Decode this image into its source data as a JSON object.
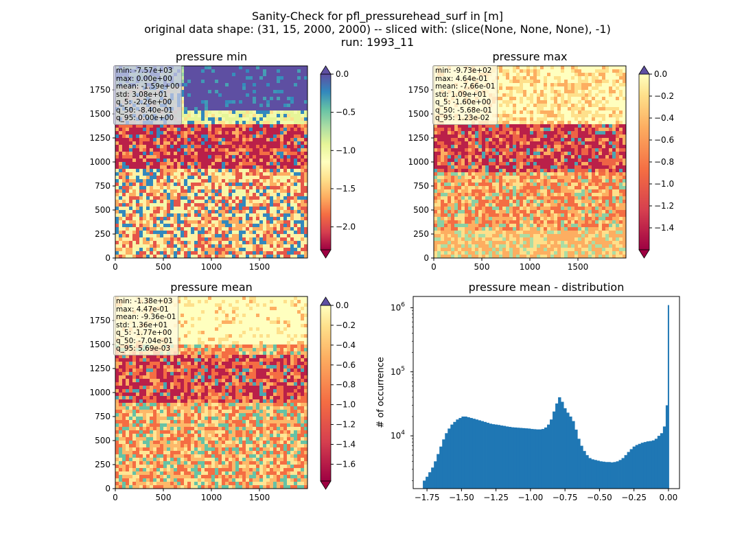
{
  "figure": {
    "suptitle_lines": [
      "Sanity-Check for pfl_pressurehead_surf in [m]",
      "original data shape: (31, 15, 2000, 2000) -- sliced with: (slice(None, None, None), -1)",
      "run: 1993_11"
    ]
  },
  "maps": [
    {
      "title": "pressure min",
      "stats": [
        "min: -7.57e+03",
        "max: 0.00e+00",
        "mean: -1.59e+00",
        "std: 3.08e+01",
        "q_5: -2.26e+00",
        "q_50: -8.40e-01",
        "q_95: 0.00e+00"
      ],
      "x_ticks": [
        "0",
        "500",
        "1000",
        "1500"
      ],
      "y_ticks": [
        "0",
        "250",
        "500",
        "750",
        "1000",
        "1250",
        "1500",
        "1750"
      ],
      "colorbar": {
        "vmin": -2.3,
        "vmax": 0.0,
        "ticks": [
          "0.0",
          "−0.5",
          "−1.0",
          "−1.5",
          "−2.0"
        ],
        "tick_values": [
          0.0,
          -0.5,
          -1.0,
          -1.5,
          -2.0
        ],
        "extend": "both",
        "cmap": "Spectral"
      }
    },
    {
      "title": "pressure max",
      "stats": [
        "min: -9.73e+02",
        "max: 4.64e-01",
        "mean: -7.66e-01",
        "std: 1.09e+01",
        "q_5: -1.60e+00",
        "q_50: -5.68e-01",
        "q_95: 1.23e-02"
      ],
      "x_ticks": [
        "0",
        "500",
        "1000",
        "1500"
      ],
      "y_ticks": [
        "0",
        "250",
        "500",
        "750",
        "1000",
        "1250",
        "1500",
        "1750"
      ],
      "colorbar": {
        "vmin": -1.6,
        "vmax": 0.0,
        "ticks": [
          "0.0",
          "−0.2",
          "−0.4",
          "−0.6",
          "−0.8",
          "−1.0",
          "−1.2",
          "−1.4"
        ],
        "tick_values": [
          0.0,
          -0.2,
          -0.4,
          -0.6,
          -0.8,
          -1.0,
          -1.2,
          -1.4
        ],
        "extend": "both",
        "cmap": "Spectral"
      }
    },
    {
      "title": "pressure mean",
      "stats": [
        "min: -1.38e+03",
        "max: 4.47e-01",
        "mean: -9.36e-01",
        "std: 1.36e+01",
        "q_5: -1.77e+00",
        "q_50: -7.04e-01",
        "q_95: 5.69e-03"
      ],
      "x_ticks": [
        "0",
        "500",
        "1000",
        "1500"
      ],
      "y_ticks": [
        "0",
        "250",
        "500",
        "750",
        "1000",
        "1250",
        "1500",
        "1750"
      ],
      "colorbar": {
        "vmin": -1.77,
        "vmax": 0.0,
        "ticks": [
          "0.0",
          "−0.2",
          "−0.4",
          "−0.6",
          "−0.8",
          "−1.0",
          "−1.2",
          "−1.4",
          "−1.6"
        ],
        "tick_values": [
          0.0,
          -0.2,
          -0.4,
          -0.6,
          -0.8,
          -1.0,
          -1.2,
          -1.4,
          -1.6
        ],
        "extend": "both",
        "cmap": "Spectral"
      }
    }
  ],
  "histogram": {
    "title": "pressure mean - distribution",
    "ylabel": "# of occurrence",
    "x_ticks": [
      "−1.75",
      "−1.50",
      "−1.25",
      "−1.00",
      "−0.75",
      "−0.50",
      "−0.25",
      "0.00"
    ],
    "y_tick_base": "10",
    "y_tick_exponents": [
      "4",
      "5",
      "6"
    ]
  },
  "chart_data": [
    {
      "type": "heatmap",
      "title": "pressure min",
      "xlim": [
        0,
        2000
      ],
      "ylim": [
        0,
        2000
      ],
      "colorbar_range": [
        -2.3,
        0.0
      ],
      "stats": {
        "min": -7570,
        "max": 0.0,
        "mean": -1.59,
        "std": 30.8,
        "q_5": -2.26,
        "q_50": -0.84,
        "q_95": 0.0
      }
    },
    {
      "type": "heatmap",
      "title": "pressure max",
      "xlim": [
        0,
        2000
      ],
      "ylim": [
        0,
        2000
      ],
      "colorbar_range": [
        -1.6,
        0.0
      ],
      "stats": {
        "min": -973,
        "max": 0.464,
        "mean": -0.766,
        "std": 10.9,
        "q_5": -1.6,
        "q_50": -0.568,
        "q_95": 0.0123
      }
    },
    {
      "type": "heatmap",
      "title": "pressure mean",
      "xlim": [
        0,
        2000
      ],
      "ylim": [
        0,
        2000
      ],
      "colorbar_range": [
        -1.77,
        0.0
      ],
      "stats": {
        "min": -1380,
        "max": 0.447,
        "mean": -0.936,
        "std": 13.6,
        "q_5": -1.77,
        "q_50": -0.704,
        "q_95": 0.00569
      }
    },
    {
      "type": "bar",
      "title": "pressure mean - distribution",
      "ylabel": "# of occurrence",
      "y_scale": "log",
      "xlim": [
        -1.85,
        0.08
      ],
      "ylim": [
        1500,
        1500000
      ],
      "color": "#1f77b4",
      "x": [
        -1.77,
        -1.75,
        -1.73,
        -1.71,
        -1.69,
        -1.67,
        -1.65,
        -1.63,
        -1.61,
        -1.59,
        -1.57,
        -1.55,
        -1.53,
        -1.51,
        -1.49,
        -1.47,
        -1.45,
        -1.43,
        -1.41,
        -1.39,
        -1.37,
        -1.35,
        -1.33,
        -1.31,
        -1.29,
        -1.27,
        -1.25,
        -1.23,
        -1.21,
        -1.19,
        -1.17,
        -1.15,
        -1.13,
        -1.11,
        -1.09,
        -1.07,
        -1.05,
        -1.03,
        -1.01,
        -0.99,
        -0.97,
        -0.95,
        -0.93,
        -0.91,
        -0.89,
        -0.87,
        -0.85,
        -0.83,
        -0.81,
        -0.79,
        -0.77,
        -0.75,
        -0.73,
        -0.71,
        -0.69,
        -0.67,
        -0.65,
        -0.63,
        -0.61,
        -0.59,
        -0.57,
        -0.55,
        -0.53,
        -0.51,
        -0.49,
        -0.47,
        -0.45,
        -0.43,
        -0.41,
        -0.39,
        -0.37,
        -0.35,
        -0.33,
        -0.31,
        -0.29,
        -0.27,
        -0.25,
        -0.23,
        -0.21,
        -0.19,
        -0.17,
        -0.15,
        -0.13,
        -0.11,
        -0.09,
        -0.07,
        -0.05,
        -0.03,
        -0.01,
        0.0
      ],
      "values": [
        2000,
        2300,
        2700,
        3200,
        4000,
        5200,
        6800,
        8800,
        11000,
        13000,
        15000,
        16500,
        18000,
        19000,
        20000,
        20000,
        19500,
        19000,
        18500,
        18000,
        17500,
        17000,
        16500,
        16000,
        15500,
        15200,
        15000,
        14800,
        14500,
        14300,
        14000,
        13800,
        13600,
        13500,
        13400,
        13300,
        13200,
        13100,
        13000,
        12800,
        12700,
        12600,
        12600,
        12800,
        13500,
        15000,
        18000,
        24000,
        32000,
        40000,
        34000,
        27000,
        23000,
        20000,
        17000,
        12500,
        9000,
        7000,
        5800,
        5000,
        4500,
        4300,
        4200,
        4100,
        4000,
        3950,
        3900,
        3900,
        3850,
        3900,
        4000,
        4200,
        4500,
        5000,
        5600,
        6200,
        6800,
        7200,
        7500,
        7800,
        8000,
        8200,
        8300,
        8500,
        9000,
        10000,
        11000,
        14000,
        30000,
        1100000
      ]
    }
  ]
}
